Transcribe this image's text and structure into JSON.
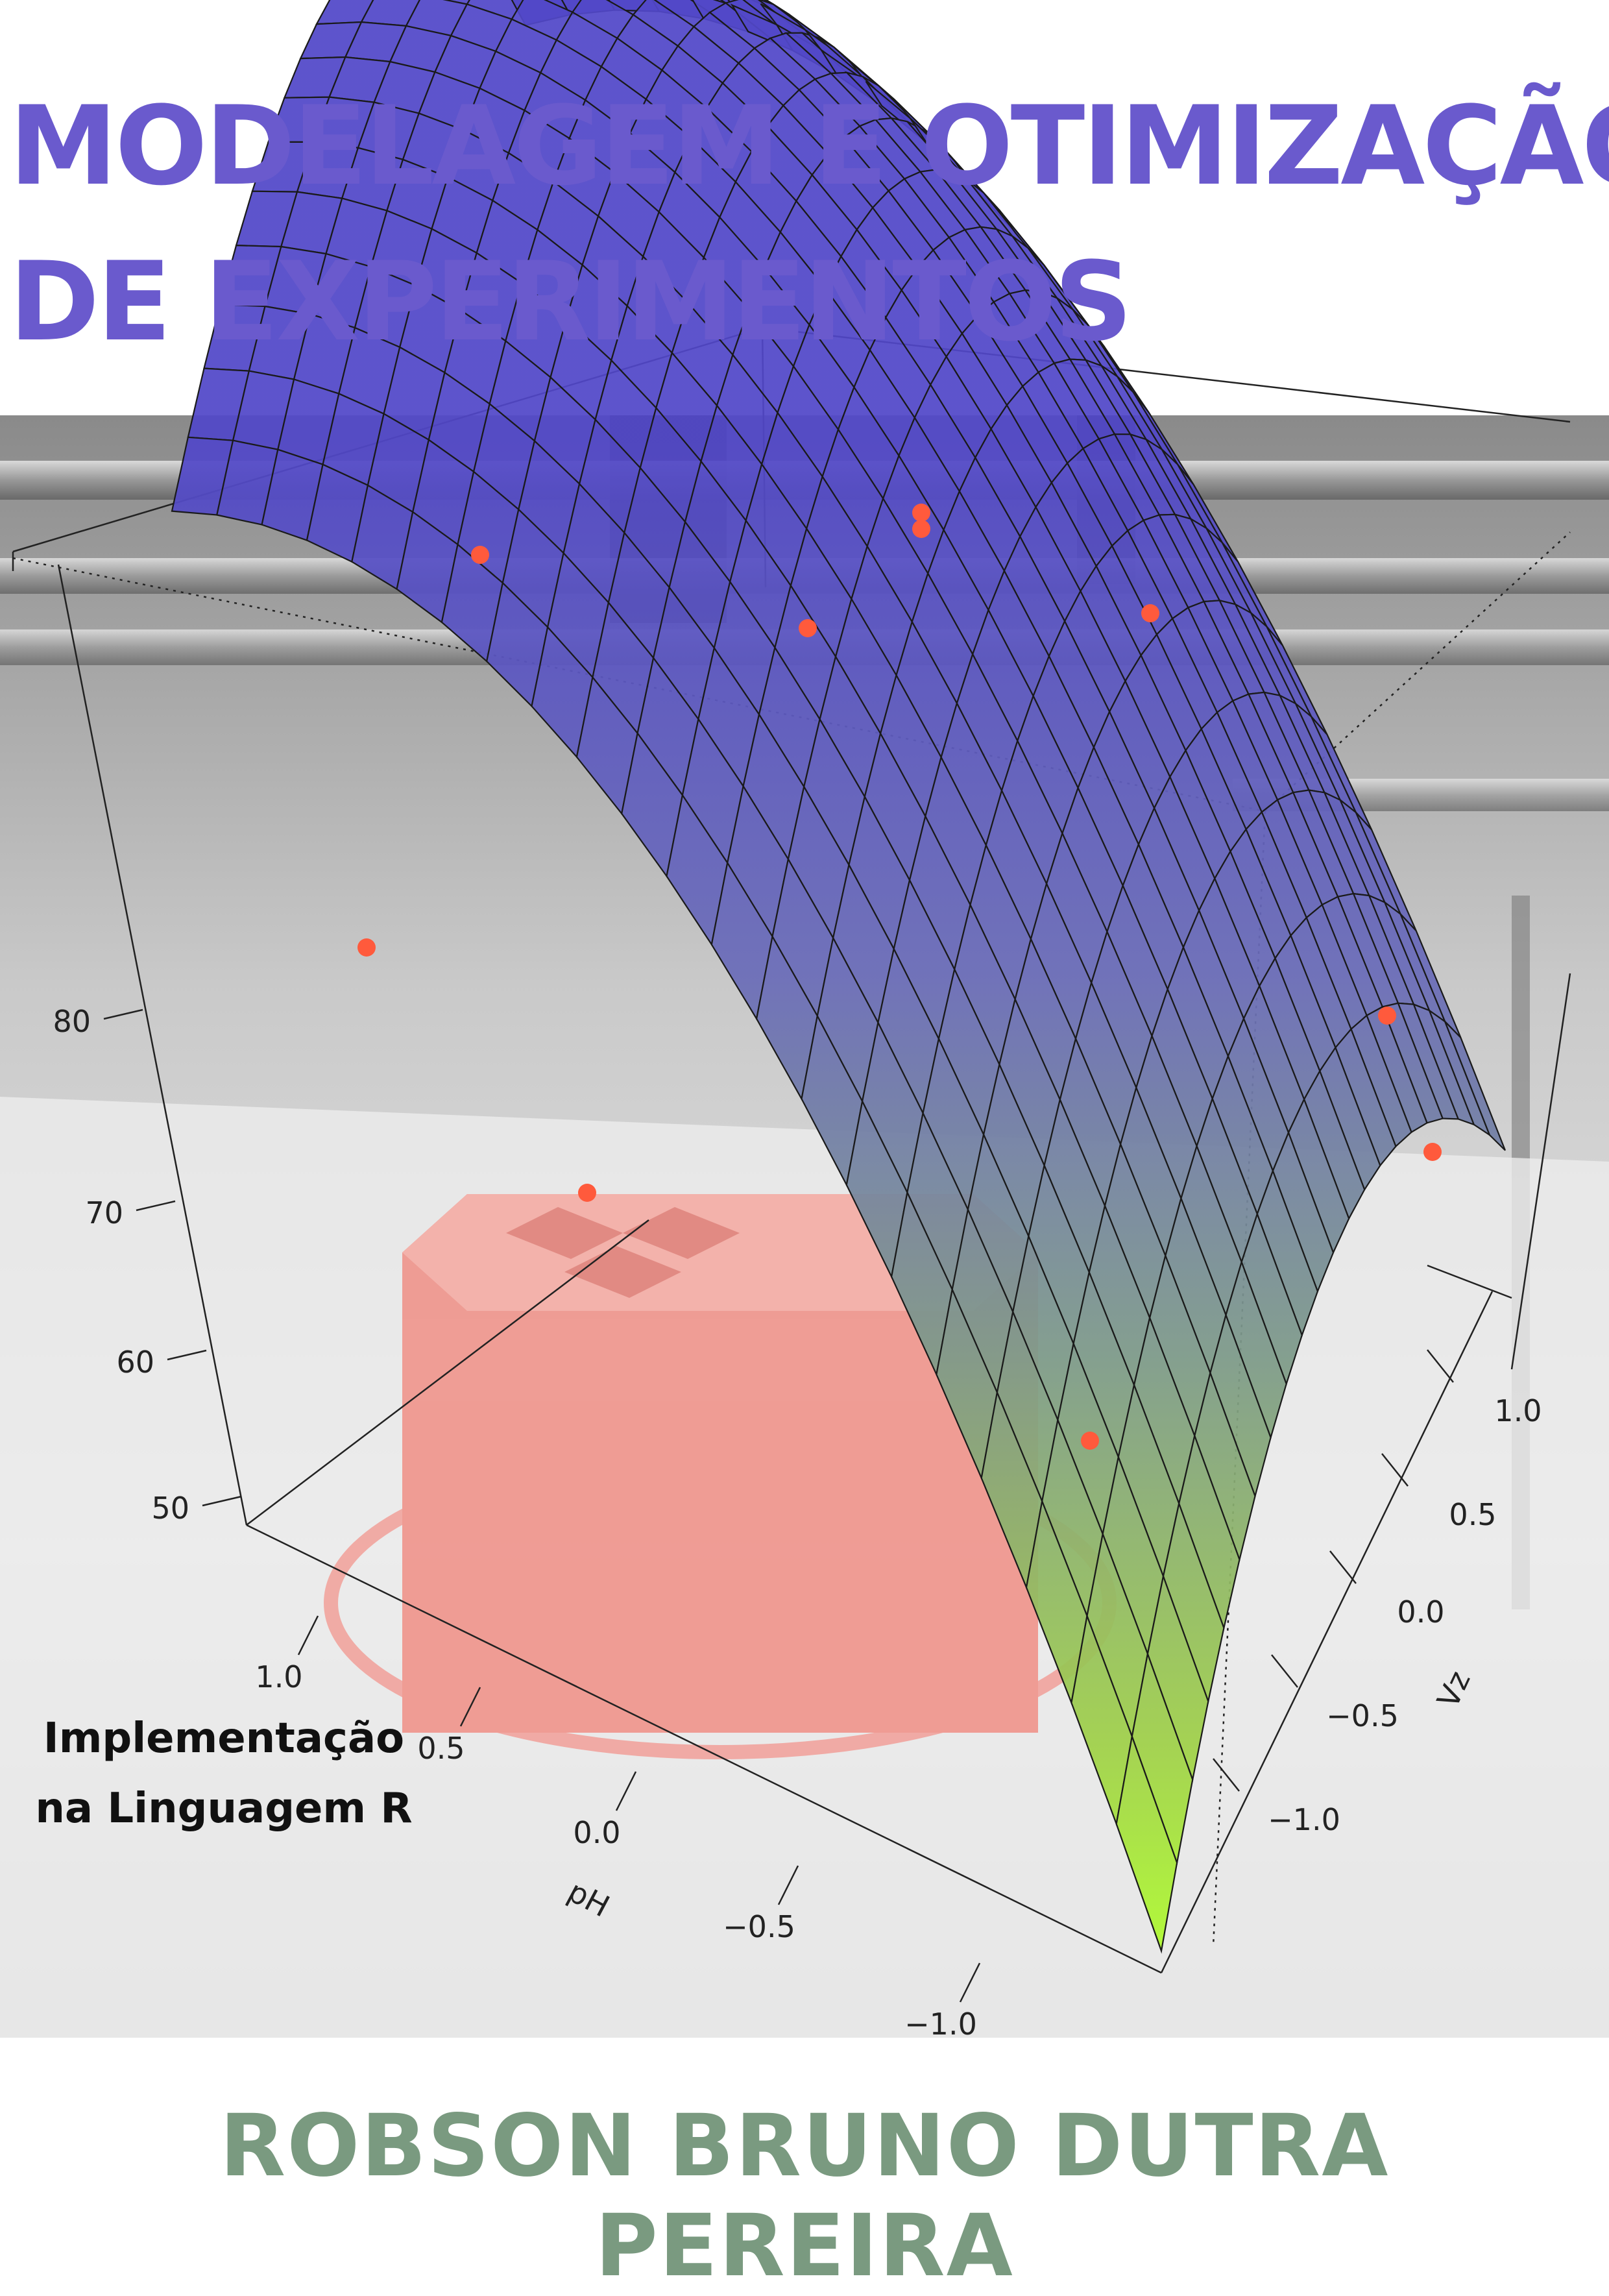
{
  "cover": {
    "title_line1": "MODELAGEM E OTIMIZAÇÃO",
    "title_line2": "DE EXPERIMENTOS",
    "subtitle_line1": "Implementação",
    "subtitle_line2": "na Linguagem R",
    "author": "ROBSON BRUNO DUTRA PEREIRA"
  },
  "colors": {
    "title": "#6a5acd",
    "author": "#7a9a80",
    "surface_top": "#5b4fc7",
    "surface_bottom": "#a8ff2a",
    "points": "#ff5a3c",
    "print_object": "#f28a80"
  },
  "plot": {
    "type": "3d-response-surface",
    "z_ticks": [
      "50",
      "60",
      "70",
      "80"
    ],
    "ph_ticks": [
      "1.0",
      "0.5",
      "0.0",
      "−0.5",
      "−1.0"
    ],
    "vz_ticks": [
      "1.0",
      "0.5",
      "0.0",
      "−0.5",
      "−1.0"
    ],
    "ph_label": "pH",
    "vz_label": "Vz"
  }
}
